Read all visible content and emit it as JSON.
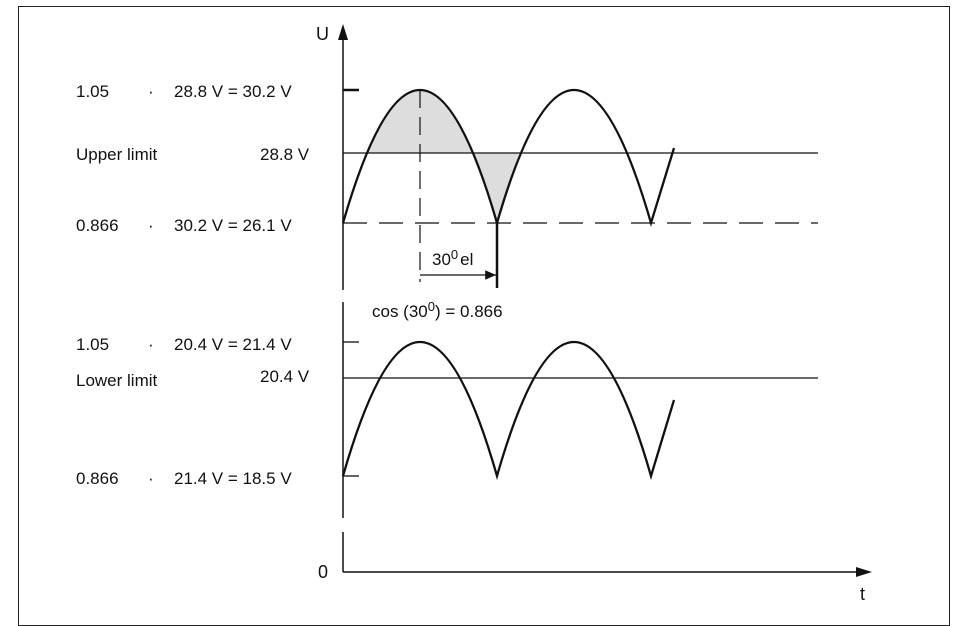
{
  "diagram": {
    "axis_y_label": "U",
    "axis_x_label": "t",
    "zero_label": "0",
    "upper": {
      "peak_label": {
        "factor": "1.05",
        "dot": "·",
        "rest": "28.8 V = 30.2 V"
      },
      "limit_name": "Upper limit",
      "limit_value": "28.8 V",
      "trough_label": {
        "factor": "0.866",
        "dot": "·",
        "rest": "30.2 V = 26.1 V"
      },
      "angle_label": {
        "base": "30",
        "sup": "0",
        "suffix": "el"
      }
    },
    "cos_label": {
      "pre": "cos (30",
      "sup": "0",
      "post": ") = 0.866"
    },
    "lower": {
      "peak_label": {
        "factor": "1.05",
        "dot": "·",
        "rest": "20.4 V = 21.4 V"
      },
      "limit_name": "Lower limit",
      "limit_value": "20.4 V",
      "trough_label": {
        "factor": "0.866",
        "dot": "·",
        "rest": "21.4 V = 18.5 V"
      }
    },
    "colors": {
      "line": "#111111",
      "shade": "#dddddd"
    }
  }
}
